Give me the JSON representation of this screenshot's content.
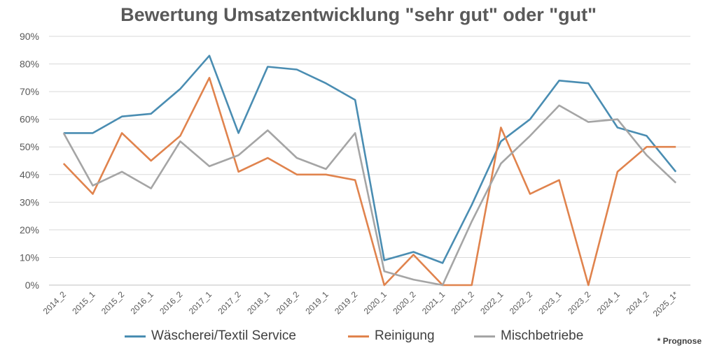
{
  "chart_data": {
    "type": "line",
    "title": "Bewertung Umsatzentwicklung \"sehr gut\" oder \"gut\"",
    "xlabel": "",
    "ylabel": "",
    "ylim": [
      0,
      90
    ],
    "y_ticks": [
      "0%",
      "10%",
      "20%",
      "30%",
      "40%",
      "50%",
      "60%",
      "70%",
      "80%",
      "90%"
    ],
    "categories": [
      "2014_2",
      "2015_1",
      "2015_2",
      "2016_1",
      "2016_2",
      "2017_1",
      "2017_2",
      "2018_1",
      "2018_2",
      "2019_1",
      "2019_2",
      "2020_1",
      "2020_2",
      "2021_1",
      "2021_2",
      "2022_1",
      "2022_2",
      "2023_1",
      "2023_2",
      "2024_1",
      "2024_2",
      "2025_1*"
    ],
    "series": [
      {
        "name": "Wäscherei/Textil Service",
        "color": "#4a8db2",
        "values": [
          55,
          55,
          61,
          62,
          71,
          83,
          55,
          79,
          78,
          73,
          67,
          9,
          12,
          8,
          29,
          52,
          60,
          74,
          73,
          57,
          54,
          41
        ]
      },
      {
        "name": "Reinigung",
        "color": "#e0834d",
        "values": [
          44,
          33,
          55,
          45,
          54,
          75,
          41,
          46,
          40,
          40,
          38,
          0,
          11,
          0,
          0,
          57,
          33,
          38,
          0,
          41,
          50,
          50
        ]
      },
      {
        "name": "Mischbetriebe",
        "color": "#a5a5a5",
        "values": [
          55,
          36,
          41,
          35,
          52,
          43,
          47,
          56,
          46,
          42,
          55,
          5,
          2,
          0,
          23,
          44,
          54,
          65,
          59,
          60,
          47,
          37
        ]
      }
    ],
    "grid": true,
    "legend_position": "bottom",
    "note": "* Prognose"
  }
}
